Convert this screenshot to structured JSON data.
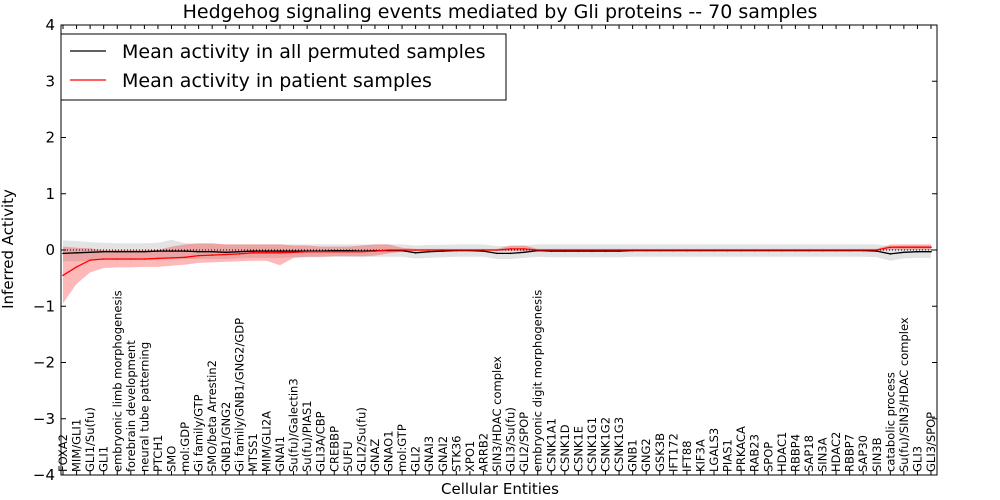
{
  "chart_data": {
    "type": "line",
    "title": "Hedgehog signaling events mediated by Gli proteins -- 70 samples",
    "xlabel": "Cellular Entities",
    "ylabel": "Inferred Activity",
    "ylim": [
      -4,
      4
    ],
    "yticks": [
      -4,
      -3,
      -2,
      -1,
      0,
      1,
      2,
      3,
      4
    ],
    "ytick_labels": [
      "−4",
      "−3",
      "−2",
      "−1",
      "0",
      "1",
      "2",
      "3",
      "4"
    ],
    "legend": {
      "location": "upper-left",
      "entries": [
        {
          "label": "Mean activity in all permuted samples",
          "color": "#000000"
        },
        {
          "label": "Mean activity in patient samples",
          "color": "#ff0000"
        }
      ]
    },
    "categories": [
      "FOXA2",
      "MIM/GLI1",
      "GLI1/Su(fu)",
      "GLI1",
      "embryonic limb morphogenesis",
      "forebrain development",
      "neural tube patterning",
      "PTCH1",
      "SMO",
      "mol:GDP",
      "Gi family/GTP",
      "SMO/beta Arrestin2",
      "GNB1/GNG2",
      "Gi family/GNB1/GNG2/GDP",
      "MTSS1",
      "MIM/GLI2A",
      "GNAI1",
      "Su(fu)/Galectin3",
      "Su(fu)/PIAS1",
      "GLI3A/CBP",
      "CREBBP",
      "SUFU",
      "GLI2/Su(fu)",
      "GNAZ",
      "GNAO1",
      "mol:GTP",
      "GLI2",
      "GNAI3",
      "GNAI2",
      "STK36",
      "XPO1",
      "ARRB2",
      "SIN3/HDAC complex",
      "GLI3/Su(fu)",
      "GLI2/SPOP",
      "embryonic digit morphogenesis",
      "CSNK1A1",
      "CSNK1D",
      "CSNK1E",
      "CSNK1G1",
      "CSNK1G2",
      "CSNK1G3",
      "GNB1",
      "GNG2",
      "GSK3B",
      "IFT172",
      "IFT88",
      "KIF3A",
      "LGALS3",
      "PIAS1",
      "PRKACA",
      "RAB23",
      "SPOP",
      "HDAC1",
      "RBBP4",
      "SAP18",
      "SIN3A",
      "HDAC2",
      "RBBP7",
      "SAP30",
      "SIN3B",
      "catabolic process",
      "Su(fu)/SIN3/HDAC complex",
      "GLI3",
      "GLI3/SPOP"
    ],
    "series": [
      {
        "name": "Mean activity in all permuted samples",
        "color": "#000000",
        "values": [
          -0.06,
          -0.05,
          -0.04,
          -0.03,
          -0.03,
          -0.03,
          -0.03,
          -0.02,
          -0.02,
          -0.02,
          -0.03,
          -0.03,
          -0.04,
          -0.03,
          -0.02,
          -0.02,
          -0.02,
          -0.02,
          -0.02,
          -0.02,
          -0.01,
          -0.01,
          -0.02,
          -0.01,
          -0.01,
          -0.01,
          -0.05,
          -0.03,
          -0.02,
          -0.01,
          -0.01,
          -0.02,
          -0.06,
          -0.06,
          -0.04,
          -0.01,
          -0.02,
          -0.02,
          -0.02,
          -0.02,
          -0.02,
          -0.02,
          -0.01,
          -0.01,
          -0.01,
          -0.01,
          -0.01,
          -0.01,
          -0.01,
          -0.01,
          -0.01,
          -0.01,
          -0.01,
          -0.01,
          -0.01,
          -0.01,
          -0.01,
          -0.01,
          -0.01,
          -0.01,
          -0.02,
          -0.07,
          -0.04,
          -0.03,
          -0.03
        ],
        "band_lower": [
          -0.2,
          -0.2,
          -0.19,
          -0.18,
          -0.18,
          -0.18,
          -0.18,
          -0.17,
          -0.16,
          -0.16,
          -0.16,
          -0.16,
          -0.16,
          -0.15,
          -0.14,
          -0.14,
          -0.14,
          -0.13,
          -0.13,
          -0.13,
          -0.12,
          -0.12,
          -0.13,
          -0.12,
          -0.12,
          -0.12,
          -0.15,
          -0.14,
          -0.13,
          -0.12,
          -0.12,
          -0.12,
          -0.16,
          -0.16,
          -0.14,
          -0.12,
          -0.13,
          -0.13,
          -0.13,
          -0.13,
          -0.13,
          -0.13,
          -0.12,
          -0.12,
          -0.12,
          -0.12,
          -0.12,
          -0.12,
          -0.12,
          -0.12,
          -0.12,
          -0.12,
          -0.12,
          -0.12,
          -0.12,
          -0.12,
          -0.12,
          -0.12,
          -0.12,
          -0.12,
          -0.13,
          -0.19,
          -0.15,
          -0.14,
          -0.14
        ],
        "band_upper": [
          0.17,
          0.16,
          0.14,
          0.13,
          0.12,
          0.12,
          0.12,
          0.13,
          0.18,
          0.12,
          0.11,
          0.11,
          0.1,
          0.1,
          0.1,
          0.1,
          0.1,
          0.1,
          0.1,
          0.1,
          0.1,
          0.1,
          0.1,
          0.1,
          0.1,
          0.1,
          0.08,
          0.09,
          0.09,
          0.1,
          0.1,
          0.1,
          0.07,
          0.07,
          0.08,
          0.1,
          0.1,
          0.1,
          0.1,
          0.1,
          0.1,
          0.1,
          0.1,
          0.1,
          0.1,
          0.1,
          0.1,
          0.1,
          0.1,
          0.1,
          0.1,
          0.1,
          0.1,
          0.1,
          0.1,
          0.1,
          0.1,
          0.1,
          0.1,
          0.1,
          0.1,
          0.06,
          0.08,
          0.08,
          0.08
        ]
      },
      {
        "name": "Mean activity in patient samples",
        "color": "#ff0000",
        "values": [
          -0.45,
          -0.3,
          -0.18,
          -0.16,
          -0.16,
          -0.16,
          -0.16,
          -0.15,
          -0.14,
          -0.13,
          -0.1,
          -0.09,
          -0.08,
          -0.07,
          -0.05,
          -0.05,
          -0.05,
          -0.04,
          -0.03,
          -0.03,
          -0.03,
          -0.03,
          -0.03,
          -0.02,
          0.0,
          0.0,
          0.0,
          0.0,
          0.0,
          0.0,
          0.0,
          0.0,
          0.0,
          0.02,
          0.02,
          0.0,
          0.0,
          0.0,
          0.0,
          0.0,
          0.0,
          0.0,
          0.0,
          0.0,
          0.0,
          0.0,
          0.0,
          0.0,
          0.0,
          0.0,
          0.0,
          0.0,
          0.0,
          0.0,
          0.0,
          0.0,
          0.0,
          0.0,
          0.0,
          0.0,
          0.0,
          0.05,
          0.05,
          0.05,
          0.05
        ],
        "band_lower": [
          -0.95,
          -0.6,
          -0.4,
          -0.32,
          -0.31,
          -0.31,
          -0.3,
          -0.3,
          -0.28,
          -0.26,
          -0.23,
          -0.22,
          -0.21,
          -0.2,
          -0.19,
          -0.19,
          -0.27,
          -0.14,
          -0.12,
          -0.12,
          -0.11,
          -0.11,
          -0.11,
          -0.1,
          -0.06,
          -0.03,
          -0.02,
          -0.02,
          -0.02,
          -0.02,
          -0.02,
          -0.02,
          -0.02,
          -0.02,
          -0.02,
          -0.02,
          -0.02,
          -0.02,
          -0.02,
          -0.02,
          -0.02,
          -0.02,
          -0.02,
          -0.02,
          -0.02,
          -0.02,
          -0.02,
          -0.02,
          -0.02,
          -0.02,
          -0.02,
          -0.02,
          -0.02,
          -0.02,
          -0.02,
          -0.02,
          -0.02,
          -0.02,
          -0.02,
          -0.02,
          -0.02,
          0.0,
          0.0,
          0.0,
          0.0
        ],
        "band_upper": [
          0.06,
          0.04,
          0.03,
          0.0,
          0.0,
          0.0,
          0.0,
          0.0,
          0.06,
          0.1,
          0.12,
          0.12,
          0.1,
          0.1,
          0.1,
          0.1,
          0.1,
          0.08,
          0.08,
          0.06,
          0.06,
          0.06,
          0.08,
          0.1,
          0.1,
          0.04,
          0.02,
          0.02,
          0.02,
          0.02,
          0.02,
          0.02,
          0.02,
          0.08,
          0.08,
          0.02,
          0.02,
          0.02,
          0.02,
          0.02,
          0.02,
          0.02,
          0.02,
          0.02,
          0.02,
          0.02,
          0.02,
          0.02,
          0.02,
          0.02,
          0.02,
          0.02,
          0.02,
          0.02,
          0.02,
          0.02,
          0.02,
          0.02,
          0.02,
          0.02,
          0.02,
          0.1,
          0.1,
          0.1,
          0.1
        ]
      }
    ]
  }
}
